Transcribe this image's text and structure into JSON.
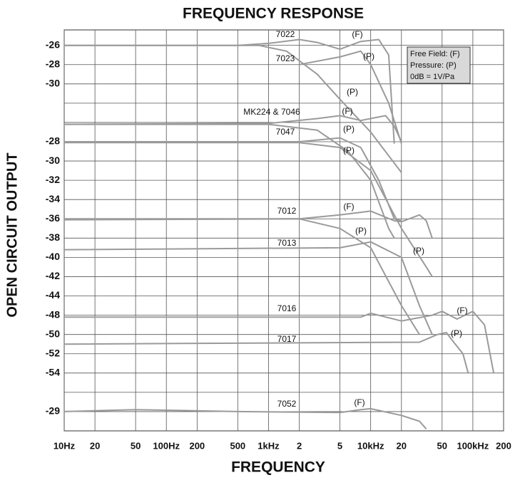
{
  "chart_data": {
    "type": "line",
    "title": "FREQUENCY RESPONSE",
    "x_label": "FREQUENCY",
    "y_label": "OPEN CIRCUIT OUTPUT",
    "x_scale": "log",
    "y_direction": "down",
    "grid": true,
    "color": "#9a9a9a",
    "xlim": [
      10,
      200000
    ],
    "ylim": [
      -0.8,
      20
    ],
    "xticks": [
      {
        "value": 10,
        "label": "10Hz"
      },
      20,
      50,
      {
        "value": 100,
        "label": "100Hz"
      },
      200,
      500,
      {
        "value": 1000,
        "label": "1kHz"
      },
      {
        "value": 2000,
        "label": "2"
      },
      {
        "value": 5000,
        "label": "5"
      },
      {
        "value": 10000,
        "label": "10kHz"
      },
      {
        "value": 20000,
        "label": "20"
      },
      {
        "value": 50000,
        "label": "50"
      },
      {
        "value": 100000,
        "label": "100kHz"
      },
      {
        "value": 200000,
        "label": "200"
      }
    ],
    "yticks": [
      {
        "value": 0,
        "label": "-26"
      },
      {
        "value": 1,
        "label": "-28"
      },
      {
        "value": 2,
        "label": "-30"
      },
      {
        "value": 3,
        "label": null
      },
      {
        "value": 4,
        "label": null
      },
      {
        "value": 5,
        "label": "-28"
      },
      {
        "value": 6,
        "label": "-30"
      },
      {
        "value": 7,
        "label": "-32"
      },
      {
        "value": 8,
        "label": "-34"
      },
      {
        "value": 9,
        "label": "-36"
      },
      {
        "value": 10,
        "label": "-38"
      },
      {
        "value": 11,
        "label": "-40"
      },
      {
        "value": 12,
        "label": "-42"
      },
      {
        "value": 13,
        "label": "-44"
      },
      {
        "value": 14,
        "label": "-48"
      },
      {
        "value": 15,
        "label": "-50"
      },
      {
        "value": 16,
        "label": "-52"
      },
      {
        "value": 17,
        "label": "-54"
      },
      {
        "value": 18,
        "label": null
      },
      {
        "value": 19,
        "label": "-29"
      }
    ],
    "series": [
      {
        "x": [
          10,
          500,
          1000,
          2000,
          3000,
          5000,
          8000,
          12000,
          15000,
          17000
        ],
        "values": [
          0,
          0,
          -0.1,
          -0.3,
          -0.15,
          0.2,
          -0.2,
          -0.3,
          0.5,
          5.1
        ]
      },
      {
        "x": [
          2000,
          5000,
          8000,
          10000,
          15000,
          20000
        ],
        "values": [
          1,
          0.6,
          0.3,
          1,
          3,
          5.1
        ]
      },
      {
        "x": [
          10,
          800,
          1500,
          3000,
          5000,
          10000,
          20000
        ],
        "values": [
          0,
          0,
          0.3,
          1.5,
          2.8,
          4.5,
          6.6
        ]
      },
      {
        "x": [
          10,
          1000,
          3000,
          5000,
          8000,
          14000,
          17000,
          20000
        ],
        "values": [
          4.1,
          4.05,
          3.8,
          3.65,
          3.9,
          3.65,
          4.2,
          5.0
        ]
      },
      {
        "x": [
          10,
          1000,
          3000,
          6000,
          10000,
          15000,
          17000
        ],
        "values": [
          4.1,
          4.1,
          4.4,
          5.5,
          7,
          9.5,
          10
        ]
      },
      {
        "x": [
          10,
          2000,
          5000,
          8000,
          12000,
          17000,
          20000
        ],
        "values": [
          5,
          5,
          4.8,
          5.3,
          7,
          9,
          9.1
        ]
      },
      {
        "x": [
          10,
          2000,
          5000,
          10000,
          20000,
          35000,
          40000
        ],
        "values": [
          5.05,
          5.05,
          5.3,
          6.5,
          9.5,
          11.5,
          12
        ]
      },
      {
        "x": [
          10,
          2000,
          5000,
          10000,
          17000,
          20000,
          30000,
          35000,
          40000
        ],
        "values": [
          9,
          9,
          8.8,
          8.6,
          9.1,
          9.15,
          8.8,
          9.1,
          10
        ]
      },
      {
        "x": [
          10,
          2000,
          5000,
          10000,
          20000,
          30000
        ],
        "values": [
          9.05,
          9,
          9.5,
          10.5,
          13.5,
          15
        ]
      },
      {
        "x": [
          10,
          5000,
          10000,
          20000,
          30000,
          40000
        ],
        "values": [
          10.6,
          10.5,
          10.2,
          11,
          13.5,
          15
        ]
      },
      {
        "x": [
          10,
          8000,
          10000,
          20000,
          40000,
          50000,
          70000,
          100000,
          130000,
          160000
        ],
        "values": [
          14.1,
          14.1,
          13.9,
          14.3,
          14,
          13.8,
          14.2,
          13.8,
          14.5,
          17
        ]
      },
      {
        "x": [
          10,
          30000,
          45000,
          55000,
          65000,
          80000,
          90000
        ],
        "values": [
          15.5,
          15.4,
          15,
          14.9,
          15.4,
          16,
          17
        ]
      },
      {
        "x": [
          10,
          50,
          500,
          5000,
          8000,
          10000,
          20000,
          30000,
          35000
        ],
        "values": [
          19,
          18.9,
          19,
          19.05,
          18.9,
          18.85,
          19.2,
          19.5,
          19.9
        ]
      }
    ],
    "annotations": [
      "7022",
      "(F)",
      "7023",
      "(P)",
      "(P)",
      "MK224 & 7046",
      "(F)",
      "7047",
      "(P)",
      "(P)",
      "7012",
      "(F)",
      "(P)",
      "7013",
      "(P)",
      "7016",
      "(F)",
      "7017",
      "(P)",
      "7052",
      "(F)"
    ],
    "legend_box": [
      "Free Field: (F)",
      "Pressure: (P)",
      "0dB = 1V/Pa"
    ]
  }
}
